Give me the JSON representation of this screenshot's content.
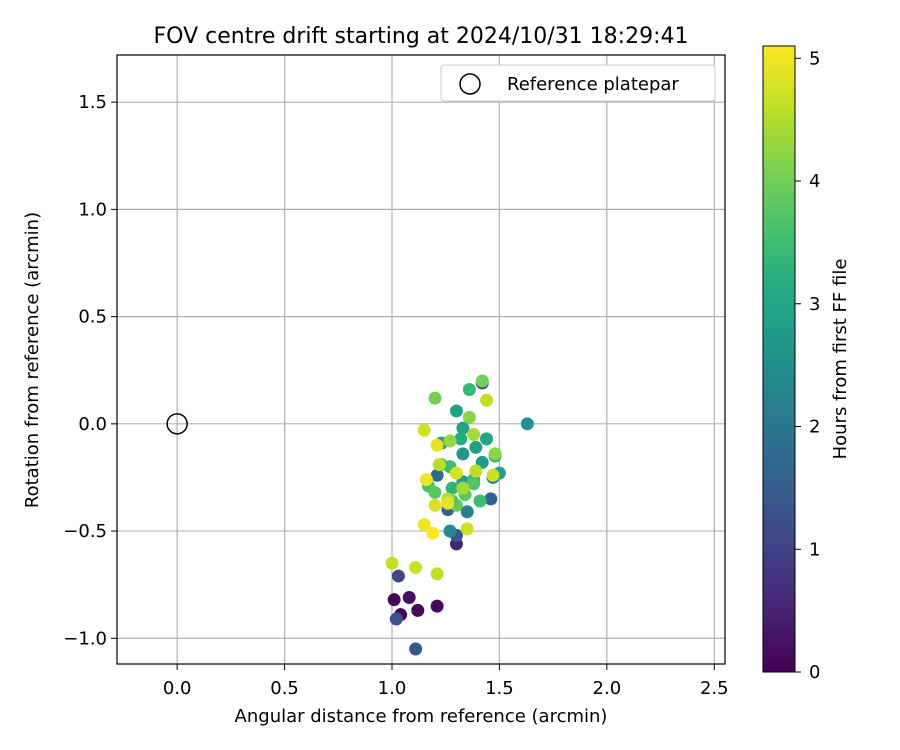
{
  "chart_data": {
    "type": "scatter",
    "title": "FOV centre drift starting at 2024/10/31 18:29:41",
    "xlabel": "Angular distance from reference (arcmin)",
    "ylabel": "Rotation from reference (arcmin)",
    "xlim": [
      -0.28,
      2.55
    ],
    "ylim": [
      -1.12,
      1.72
    ],
    "xticks": [
      0.0,
      0.5,
      1.0,
      1.5,
      2.0,
      2.5
    ],
    "xtick_labels": [
      "0.0",
      "0.5",
      "1.0",
      "1.5",
      "2.0",
      "2.5"
    ],
    "yticks": [
      -1.0,
      -0.5,
      0.0,
      0.5,
      1.0,
      1.5
    ],
    "ytick_labels": [
      "−1.0",
      "−0.5",
      "0.0",
      "0.5",
      "1.0",
      "1.5"
    ],
    "grid": true,
    "legend": {
      "position": "top-right",
      "entries": [
        "Reference platepar"
      ]
    },
    "reference_point": {
      "x": 0.0,
      "y": 0.0,
      "label": "Reference platepar"
    },
    "colorbar": {
      "label": "Hours from first FF file",
      "min": 0,
      "max": 5.1,
      "ticks": [
        0,
        1,
        2,
        3,
        4,
        5
      ],
      "tick_labels": [
        "0",
        "1",
        "2",
        "3",
        "4",
        "5"
      ],
      "colormap": "viridis"
    },
    "points": [
      {
        "x": 1.01,
        "y": -0.82,
        "h": 0.1
      },
      {
        "x": 1.04,
        "y": -0.89,
        "h": 0.1
      },
      {
        "x": 1.08,
        "y": -0.81,
        "h": 0.2
      },
      {
        "x": 1.12,
        "y": -0.87,
        "h": 0.1
      },
      {
        "x": 1.21,
        "y": -0.85,
        "h": 0.1
      },
      {
        "x": 1.02,
        "y": -0.91,
        "h": 1.3
      },
      {
        "x": 1.03,
        "y": -0.71,
        "h": 1.1
      },
      {
        "x": 1.11,
        "y": -1.05,
        "h": 1.4
      },
      {
        "x": 1.3,
        "y": -0.56,
        "h": 0.5
      },
      {
        "x": 1.3,
        "y": -0.52,
        "h": 1.4
      },
      {
        "x": 1.46,
        "y": -0.35,
        "h": 1.6
      },
      {
        "x": 1.42,
        "y": 0.19,
        "h": 1.5
      },
      {
        "x": 1.26,
        "y": -0.4,
        "h": 1.6
      },
      {
        "x": 1.21,
        "y": -0.24,
        "h": 1.8
      },
      {
        "x": 1.63,
        "y": 0.0,
        "h": 2.6
      },
      {
        "x": 1.27,
        "y": -0.5,
        "h": 2.4
      },
      {
        "x": 1.35,
        "y": -0.41,
        "h": 2.2
      },
      {
        "x": 1.47,
        "y": -0.25,
        "h": 2.2
      },
      {
        "x": 1.23,
        "y": -0.09,
        "h": 2.8
      },
      {
        "x": 1.36,
        "y": 0.16,
        "h": 3.4
      },
      {
        "x": 1.3,
        "y": 0.06,
        "h": 2.9
      },
      {
        "x": 1.33,
        "y": -0.02,
        "h": 3.0
      },
      {
        "x": 1.32,
        "y": -0.07,
        "h": 3.1
      },
      {
        "x": 1.33,
        "y": -0.14,
        "h": 2.7
      },
      {
        "x": 1.39,
        "y": -0.11,
        "h": 2.9
      },
      {
        "x": 1.44,
        "y": -0.07,
        "h": 3.0
      },
      {
        "x": 1.48,
        "y": -0.15,
        "h": 3.2
      },
      {
        "x": 1.42,
        "y": -0.18,
        "h": 2.8
      },
      {
        "x": 1.5,
        "y": -0.23,
        "h": 3.0
      },
      {
        "x": 1.28,
        "y": -0.3,
        "h": 3.3
      },
      {
        "x": 1.33,
        "y": -0.27,
        "h": 2.8
      },
      {
        "x": 1.38,
        "y": -0.26,
        "h": 3.4
      },
      {
        "x": 1.41,
        "y": -0.36,
        "h": 3.5
      },
      {
        "x": 1.23,
        "y": -0.19,
        "h": 3.6
      },
      {
        "x": 1.34,
        "y": -0.33,
        "h": 3.8
      },
      {
        "x": 1.38,
        "y": -0.28,
        "h": 3.7
      },
      {
        "x": 1.27,
        "y": -0.2,
        "h": 3.5
      },
      {
        "x": 1.3,
        "y": -0.38,
        "h": 3.9
      },
      {
        "x": 1.17,
        "y": -0.29,
        "h": 3.6
      },
      {
        "x": 1.2,
        "y": -0.32,
        "h": 3.8
      },
      {
        "x": 1.28,
        "y": -0.36,
        "h": 3.7
      },
      {
        "x": 1.2,
        "y": 0.12,
        "h": 4.0
      },
      {
        "x": 1.42,
        "y": 0.2,
        "h": 4.0
      },
      {
        "x": 1.36,
        "y": 0.03,
        "h": 4.2
      },
      {
        "x": 1.38,
        "y": -0.05,
        "h": 4.4
      },
      {
        "x": 1.44,
        "y": 0.11,
        "h": 4.6
      },
      {
        "x": 1.48,
        "y": -0.14,
        "h": 4.2
      },
      {
        "x": 1.27,
        "y": -0.08,
        "h": 4.3
      },
      {
        "x": 1.22,
        "y": -0.19,
        "h": 4.6
      },
      {
        "x": 1.33,
        "y": -0.3,
        "h": 4.4
      },
      {
        "x": 1.39,
        "y": -0.22,
        "h": 4.6
      },
      {
        "x": 1.26,
        "y": -0.35,
        "h": 4.5
      },
      {
        "x": 1.3,
        "y": -0.23,
        "h": 4.8
      },
      {
        "x": 1.47,
        "y": -0.24,
        "h": 4.7
      },
      {
        "x": 1.15,
        "y": -0.03,
        "h": 4.7
      },
      {
        "x": 1.21,
        "y": -0.1,
        "h": 4.9
      },
      {
        "x": 1.16,
        "y": -0.26,
        "h": 5.0
      },
      {
        "x": 1.26,
        "y": -0.37,
        "h": 4.9
      },
      {
        "x": 1.2,
        "y": -0.38,
        "h": 4.8
      },
      {
        "x": 1.35,
        "y": -0.49,
        "h": 4.7
      },
      {
        "x": 1.15,
        "y": -0.47,
        "h": 5.0
      },
      {
        "x": 1.19,
        "y": -0.51,
        "h": 5.1
      },
      {
        "x": 1.0,
        "y": -0.65,
        "h": 4.6
      },
      {
        "x": 1.11,
        "y": -0.67,
        "h": 4.7
      },
      {
        "x": 1.21,
        "y": -0.7,
        "h": 4.6
      }
    ]
  }
}
